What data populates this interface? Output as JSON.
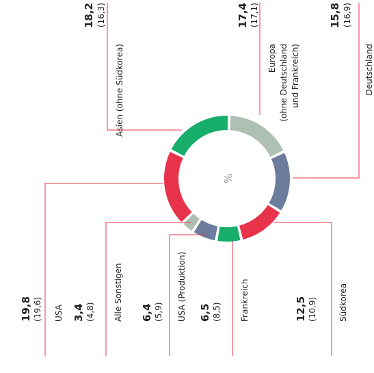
{
  "chart_data": {
    "type": "donut",
    "center_label": "%",
    "categories": [
      [
        "Europa",
        "(ohne Deutschland",
        "und Frankreich)"
      ],
      [
        "Deutschland"
      ],
      [
        "Südkorea"
      ],
      [
        "Frankreich"
      ],
      [
        "USA (Produktion)"
      ],
      [
        "Alle Sonstigen"
      ],
      [
        "USA"
      ],
      [
        "Asien (ohne Südkorea)"
      ]
    ],
    "values": [
      17.4,
      15.8,
      12.5,
      6.5,
      6.4,
      3.4,
      19.8,
      18.2
    ],
    "value_labels": [
      "17,4",
      "15,8",
      "12,5",
      "6,5",
      "6,4",
      "3,4",
      "19,8",
      "18,2"
    ],
    "prior_values": [
      17.1,
      16.9,
      10.9,
      8.5,
      5.9,
      4.8,
      19.6,
      16.3
    ],
    "prior_value_labels": [
      "(17,1)",
      "(16,9)",
      "(10,9)",
      "(8,5)",
      "(5,9)",
      "(4,8)",
      "(19,6)",
      "(16,3)"
    ],
    "colors": [
      "#aebfb3",
      "#6b7c9c",
      "#e8334a",
      "#17ad6a",
      "#6b7c9c",
      "#aebfb3",
      "#e8334a",
      "#17ad6a"
    ]
  }
}
